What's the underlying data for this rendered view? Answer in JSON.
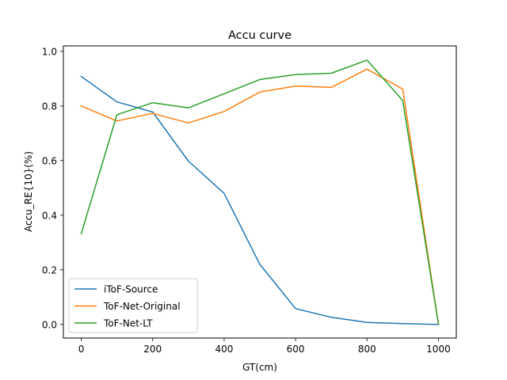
{
  "chart_data": {
    "type": "line",
    "title": "Accu curve",
    "xlabel": "GT(cm)",
    "ylabel": "Accu_RE{10}(%)",
    "xlim": [
      -50,
      1050
    ],
    "ylim": [
      -0.05,
      1.02
    ],
    "xticks": [
      0,
      200,
      400,
      600,
      800,
      1000
    ],
    "yticks": [
      0.0,
      0.2,
      0.4,
      0.6,
      0.8,
      1.0
    ],
    "xtick_labels": [
      "0",
      "200",
      "400",
      "600",
      "800",
      "1000"
    ],
    "ytick_labels": [
      "0.0",
      "0.2",
      "0.4",
      "0.6",
      "0.8",
      "1.0"
    ],
    "grid": false,
    "legend_position": "lower-left",
    "x": [
      0,
      100,
      200,
      300,
      400,
      500,
      600,
      700,
      800,
      900,
      1000
    ],
    "series": [
      {
        "name": "iToF-Source",
        "color": "#1f77b4",
        "values": [
          0.908,
          0.815,
          0.778,
          0.598,
          0.48,
          0.22,
          0.058,
          0.026,
          0.007,
          0.003,
          0.0
        ]
      },
      {
        "name": "ToF-Net-Original",
        "color": "#ff7f0e",
        "values": [
          0.8,
          0.745,
          0.773,
          0.738,
          0.78,
          0.851,
          0.873,
          0.868,
          0.935,
          0.862,
          0.0
        ]
      },
      {
        "name": "ToF-Net-LT",
        "color": "#2ca02c",
        "values": [
          0.332,
          0.768,
          0.812,
          0.793,
          0.845,
          0.897,
          0.915,
          0.92,
          0.968,
          0.82,
          0.0
        ]
      }
    ]
  }
}
